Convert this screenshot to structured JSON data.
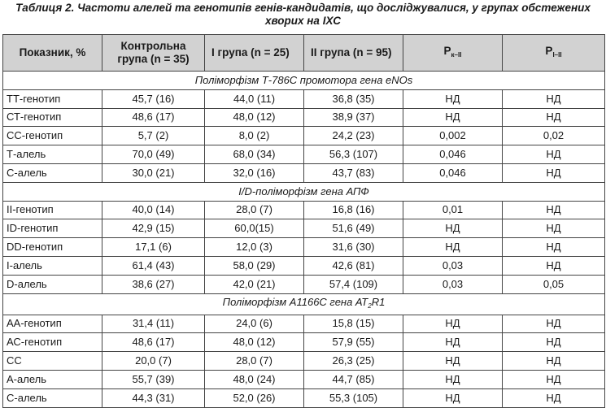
{
  "caption": {
    "line1": "Таблиця 2. Частоти алелей та генотипів генів-кандидатів, що досліджувалися, у групах обстежених",
    "line2": "хворих на ІХС"
  },
  "headers": {
    "indicator": "Показник, %",
    "control_line1": "Контрольна",
    "control_line2": "група (n = 35)",
    "group1": "І група (n = 25)",
    "group2": "ІІ група (n = 95)",
    "p_kII_main": "P",
    "p_kII_sub": "к–ІІ",
    "p_III_main": "P",
    "p_III_sub": "І–ІІ"
  },
  "sections": [
    {
      "title_parts": [
        "Поліморфізм Т-786С промотора гена eNOs"
      ],
      "rows": [
        [
          "ТТ-генотип",
          "45,7 (16)",
          "44,0 (11)",
          "36,8 (35)",
          "НД",
          "НД"
        ],
        [
          "СТ-генотип",
          "48,6 (17)",
          "48,0 (12)",
          "38,9 (37)",
          "НД",
          "НД"
        ],
        [
          "СС-генотип",
          "5,7 (2)",
          "8,0 (2)",
          "24,2 (23)",
          "0,002",
          "0,02"
        ],
        [
          "Т-алель",
          "70,0 (49)",
          "68,0 (34)",
          "56,3 (107)",
          "0,046",
          "НД"
        ],
        [
          "С-алель",
          "30,0 (21)",
          "32,0 (16)",
          "43,7 (83)",
          "0,046",
          "НД"
        ]
      ]
    },
    {
      "title_parts": [
        "I/D-поліморфізм гена АПФ"
      ],
      "rows": [
        [
          "ІІ-генотип",
          "40,0 (14)",
          "28,0 (7)",
          "16,8 (16)",
          "0,01",
          "НД"
        ],
        [
          "ID-генотип",
          "42,9 (15)",
          "60,0(15)",
          "51,6 (49)",
          "НД",
          "НД"
        ],
        [
          "DD-генотип",
          "17,1 (6)",
          "12,0 (3)",
          "31,6 (30)",
          "НД",
          "НД"
        ],
        [
          "І-алель",
          "61,4 (43)",
          "58,0 (29)",
          "42,6 (81)",
          "0,03",
          "НД"
        ],
        [
          "D-алель",
          "38,6 (27)",
          "42,0 (21)",
          "57,4 (109)",
          "0,03",
          "0,05"
        ]
      ]
    },
    {
      "title_parts": [
        "Поліморфізм А1166С гена АТ",
        "2",
        "R1"
      ],
      "rows": [
        [
          "АА-генотип",
          "31,4 (11)",
          "24,0 (6)",
          "15,8 (15)",
          "НД",
          "НД"
        ],
        [
          "АС-генотип",
          "48,6 (17)",
          "48,0 (12)",
          "57,9 (55)",
          "НД",
          "НД"
        ],
        [
          "СС",
          "20,0 (7)",
          "28,0 (7)",
          "26,3 (25)",
          "НД",
          "НД"
        ],
        [
          "А-алель",
          "55,7 (39)",
          "48,0 (24)",
          "44,7 (85)",
          "НД",
          "НД"
        ],
        [
          "С-алель",
          "44,3 (31)",
          "52,0 (26)",
          "55,3 (105)",
          "НД",
          "НД"
        ]
      ]
    }
  ]
}
